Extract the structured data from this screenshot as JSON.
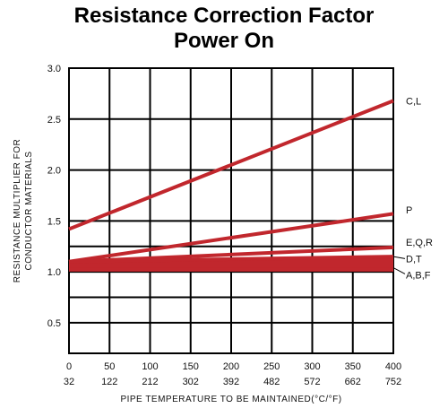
{
  "chart_data": {
    "type": "line",
    "title": "Resistance Correction Factor",
    "subtitle": "Power On",
    "ylabel_line1": "RESISTANCE MULTIPLIER FOR",
    "ylabel_line2": "CONDUCTOR MATERIALS",
    "xlabel": "PIPE TEMPERATURE TO BE MAINTAINED(°C/°F)",
    "xlim": [
      0,
      400
    ],
    "ylim": [
      0.2,
      3.0
    ],
    "x_ticks_c": [
      "0",
      "50",
      "100",
      "150",
      "200",
      "250",
      "300",
      "350",
      "400"
    ],
    "x_ticks_f": [
      "32",
      "122",
      "212",
      "302",
      "392",
      "482",
      "572",
      "662",
      "752"
    ],
    "y_tick_labels": [
      "3.0",
      "2.5",
      "2.0",
      "1.5",
      "1.0",
      "0.5"
    ],
    "series": [
      {
        "name": "C,L",
        "x": [
          0,
          400
        ],
        "y": [
          1.42,
          2.68
        ]
      },
      {
        "name": "P",
        "x": [
          0,
          400
        ],
        "y": [
          1.1,
          1.57
        ]
      },
      {
        "name": "E,Q,R",
        "x": [
          0,
          400
        ],
        "y": [
          1.1,
          1.24
        ]
      },
      {
        "name": "D,T",
        "x": [
          0,
          400
        ],
        "y": [
          1.1,
          1.15
        ]
      },
      {
        "name": "A,B,F",
        "x": [
          0,
          400
        ],
        "y": [
          1.02,
          1.02
        ]
      }
    ],
    "band": {
      "x": [
        0,
        400
      ],
      "y_low": [
        1.02,
        1.02
      ],
      "y_high": [
        1.1,
        1.15
      ]
    },
    "line_color": "#c1272d",
    "grid": true
  }
}
